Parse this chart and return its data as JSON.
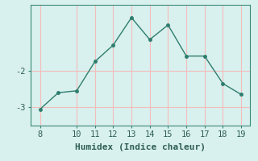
{
  "x": [
    8,
    9,
    10,
    11,
    12,
    13,
    14,
    15,
    16,
    17,
    18,
    19
  ],
  "y": [
    -3.05,
    -2.6,
    -2.55,
    -1.75,
    -1.3,
    -0.55,
    -1.15,
    -0.75,
    -1.6,
    -1.6,
    -2.35,
    -2.65
  ],
  "line_color": "#2e7d6e",
  "marker": "o",
  "marker_size": 2.5,
  "background_color": "#d8f0ee",
  "grid_color": "#f5bcbc",
  "xlabel": "Humidex (Indice chaleur)",
  "xlim": [
    7.5,
    19.5
  ],
  "ylim": [
    -3.5,
    -0.2
  ],
  "xticks": [
    8,
    10,
    11,
    12,
    13,
    14,
    15,
    16,
    17,
    18,
    19
  ],
  "ytick_positions": [
    -3,
    -2
  ],
  "ytick_labels": [
    "-3",
    "-2"
  ],
  "linewidth": 1.0,
  "tick_fontsize": 7.5,
  "xlabel_fontsize": 8.0
}
